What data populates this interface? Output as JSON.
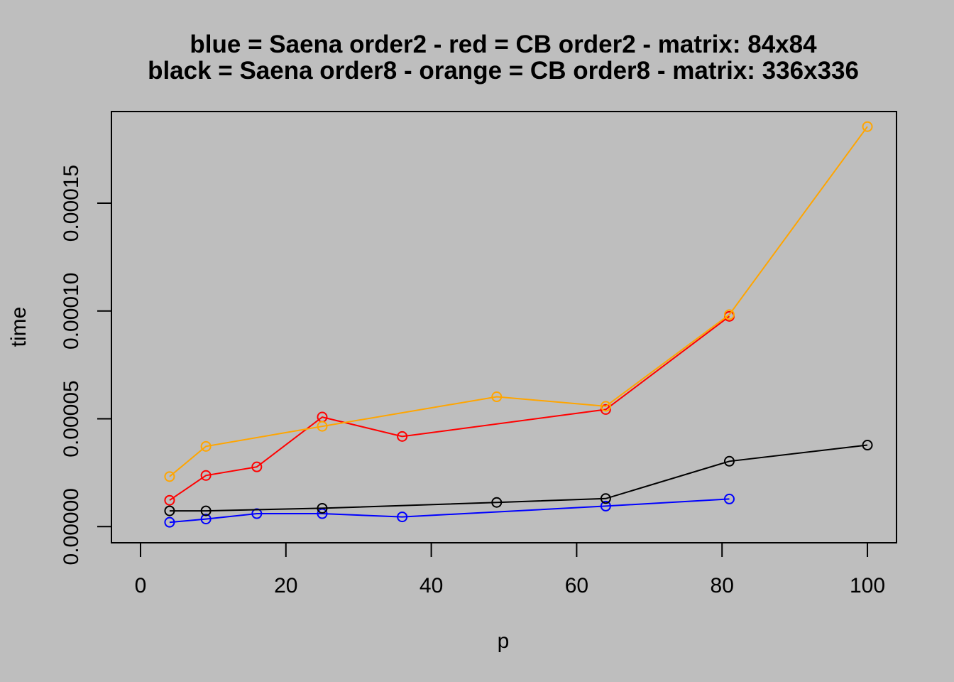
{
  "chart_data": {
    "type": "line",
    "title_line1": "blue = Saena order2  -  red = CB order2   -   matrix: 84x84",
    "title_line2": "black = Saena order8  -  orange = CB order8   -   matrix: 336x336",
    "xlabel": "p",
    "ylabel": "time",
    "xlim": [
      -4,
      104
    ],
    "ylim": [
      -7.5e-06,
      0.0001925
    ],
    "x_ticks": [
      0,
      20,
      40,
      60,
      80,
      100
    ],
    "x_tick_labels": [
      "0",
      "20",
      "40",
      "60",
      "80",
      "100"
    ],
    "y_ticks": [
      0,
      5e-05,
      0.0001,
      0.00015
    ],
    "y_tick_labels": [
      "0.00000",
      "0.00005",
      "0.00010",
      "0.00015"
    ],
    "grid": false,
    "series": [
      {
        "color": "#0000ff",
        "x": [
          4,
          9,
          16,
          25,
          36,
          64,
          81
        ],
        "y": [
          2e-06,
          3.5e-06,
          6e-06,
          6e-06,
          4.5e-06,
          9.5e-06,
          1.28e-05
        ]
      },
      {
        "color": "#ff0000",
        "x": [
          4,
          9,
          16,
          25,
          36,
          64,
          81
        ],
        "y": [
          1.22e-05,
          2.37e-05,
          2.77e-05,
          5.08e-05,
          4.18e-05,
          5.43e-05,
          9.75e-05
        ]
      },
      {
        "color": "#000000",
        "x": [
          4,
          9,
          25,
          49,
          64,
          81,
          100
        ],
        "y": [
          7.3e-06,
          7.3e-06,
          8.5e-06,
          1.12e-05,
          1.3e-05,
          3.03e-05,
          3.78e-05
        ]
      },
      {
        "color": "#ffa500",
        "x": [
          4,
          9,
          25,
          49,
          64,
          81,
          100
        ],
        "y": [
          2.32e-05,
          3.72e-05,
          4.65e-05,
          6.02e-05,
          5.58e-05,
          9.83e-05,
          0.0001855
        ]
      }
    ]
  }
}
